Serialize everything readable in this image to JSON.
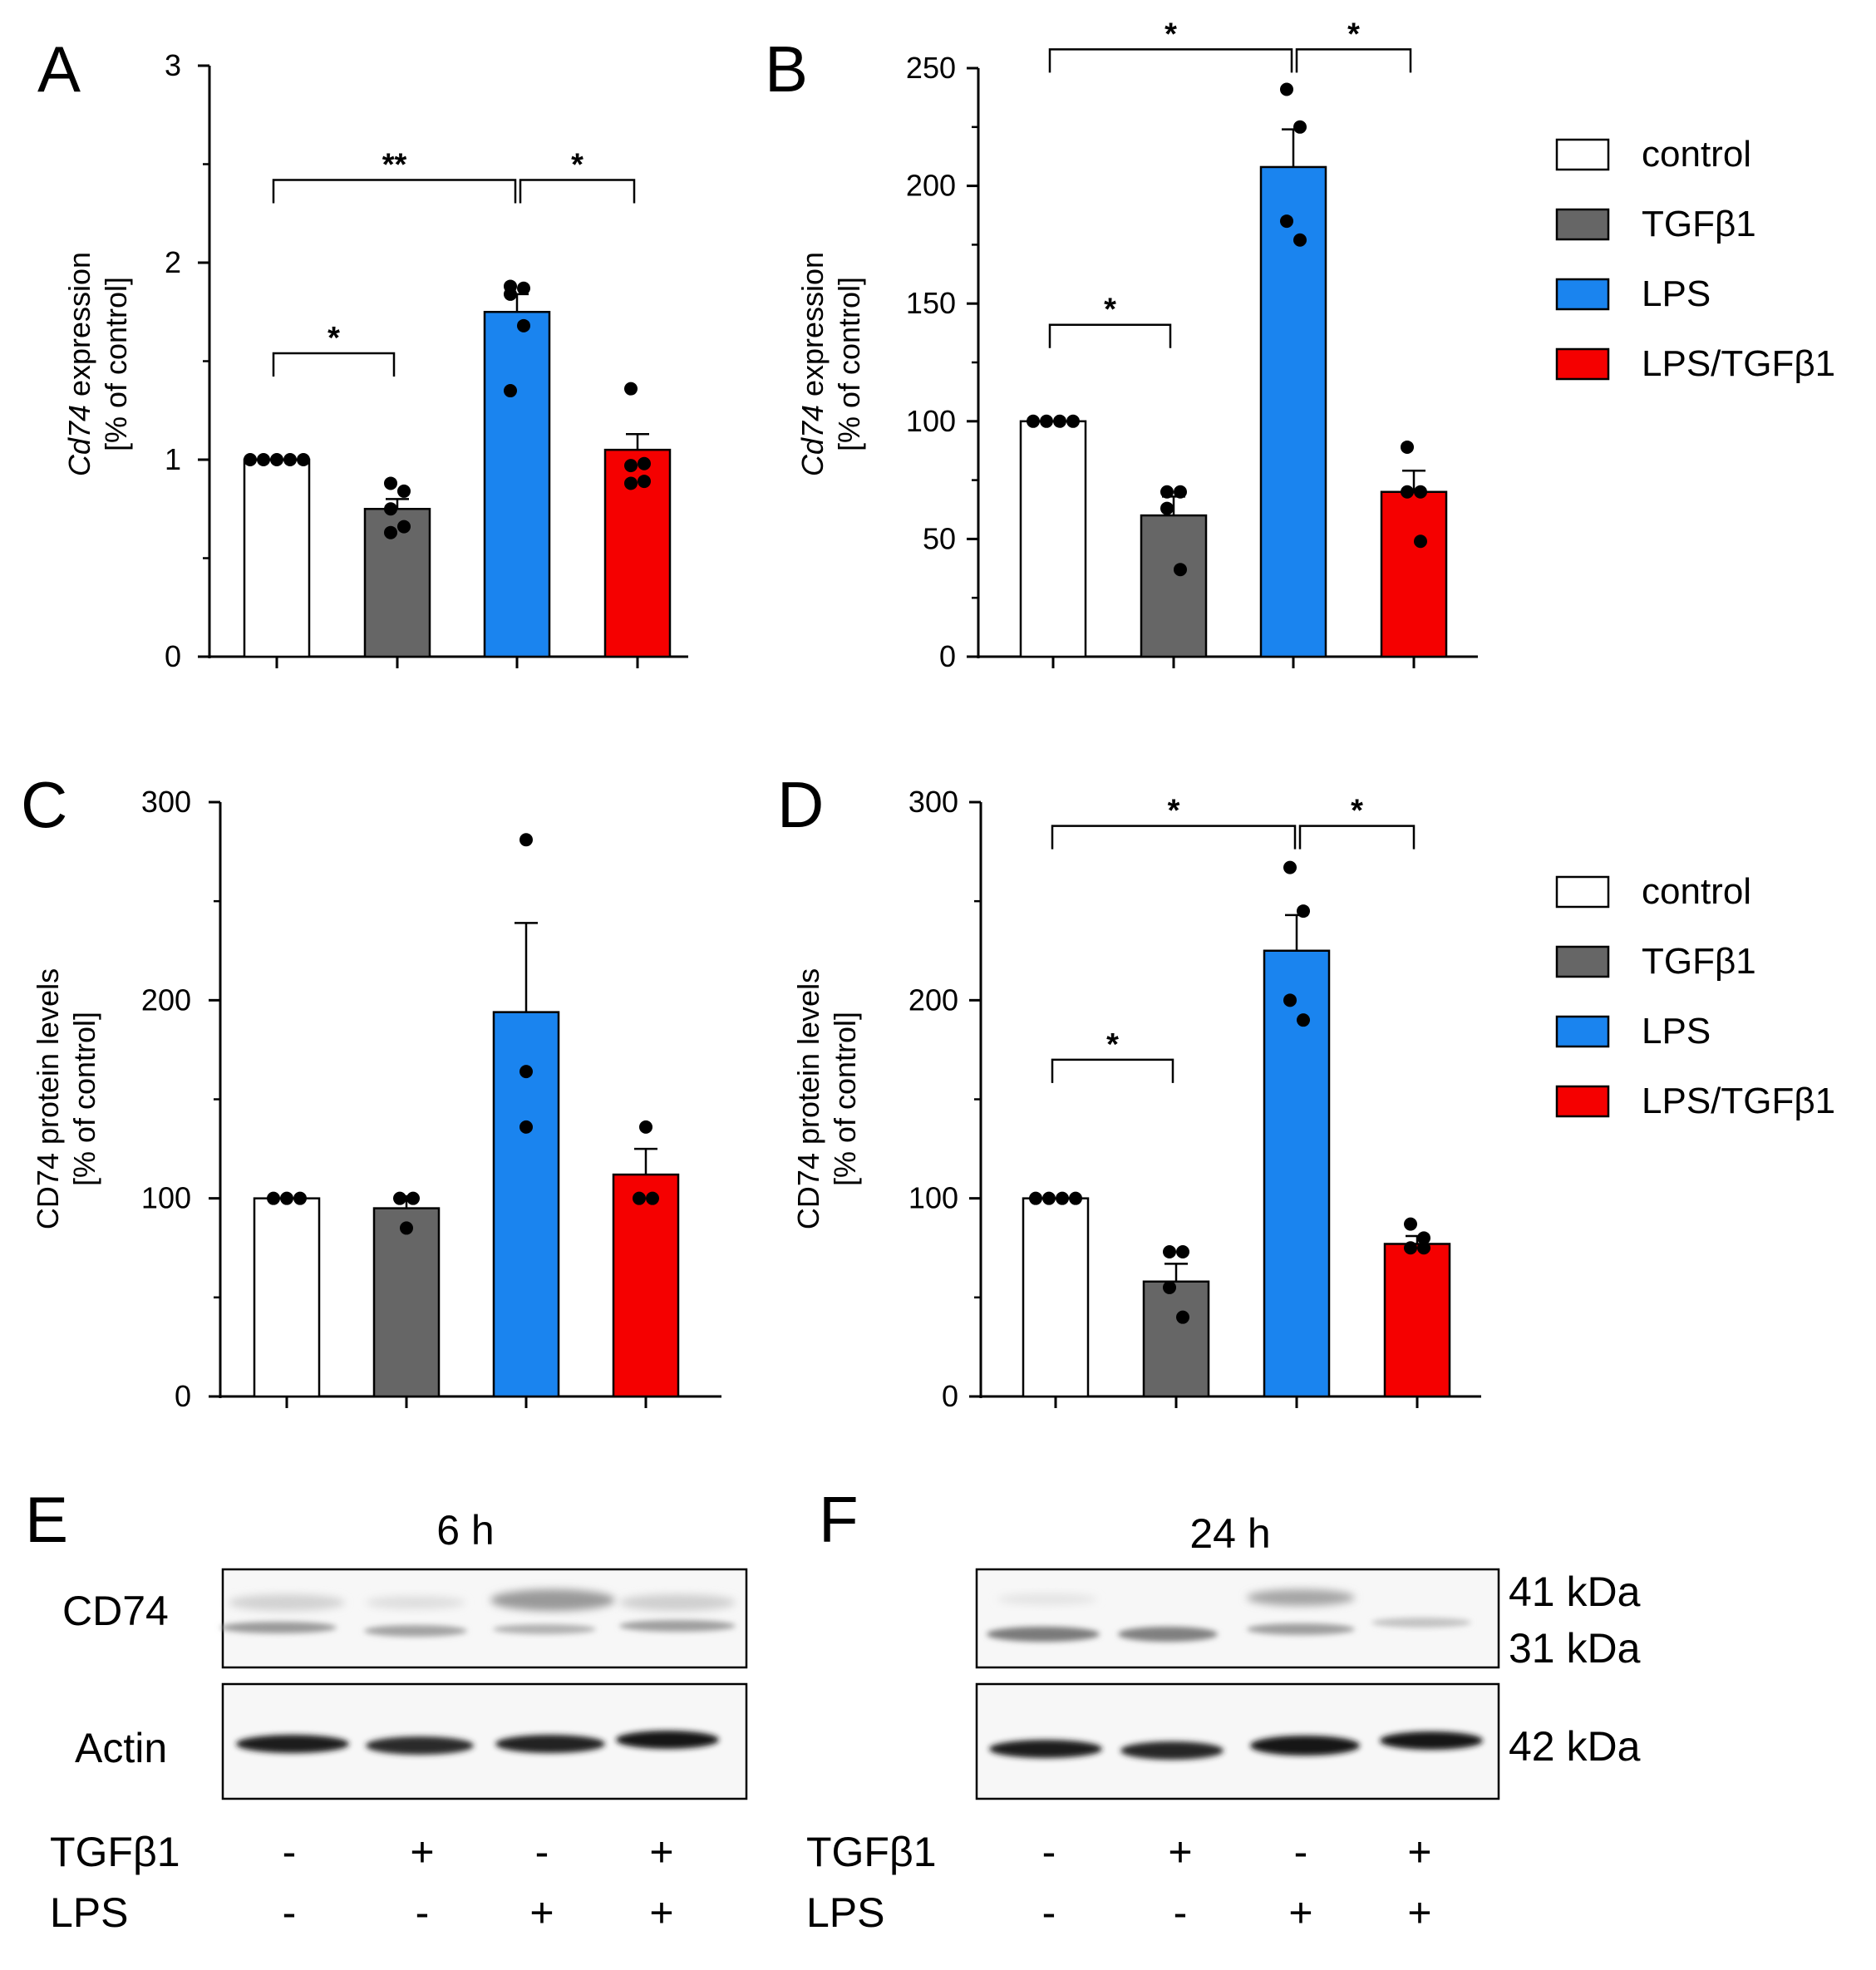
{
  "legend": {
    "entries": [
      {
        "label": "control",
        "color": "#ffffff"
      },
      {
        "label": "TGFβ1",
        "color": "#666666"
      },
      {
        "label": "LPS",
        "color": "#1a84ef"
      },
      {
        "label": "LPS/TGFβ1",
        "color": "#f50000"
      }
    ]
  },
  "chart_data": [
    {
      "panel": "A",
      "type": "bar",
      "title": "",
      "ylabel_italic": "Cd74",
      "ylabel_rest": " expression",
      "ylabel_line2": "[% of control]",
      "categories": [
        "control",
        "TGFβ1",
        "LPS",
        "LPS/TGFβ1"
      ],
      "colors": [
        "#ffffff",
        "#666666",
        "#1a84ef",
        "#f50000"
      ],
      "values": [
        1.0,
        0.75,
        1.75,
        1.05
      ],
      "errors": [
        0,
        0.05,
        0.09,
        0.08
      ],
      "points": [
        [
          1,
          1,
          1,
          1,
          1
        ],
        [
          0.88,
          0.84,
          0.75,
          0.66,
          0.63
        ],
        [
          1.88,
          1.87,
          1.84,
          1.68,
          1.35
        ],
        [
          1.36,
          0.98,
          0.97,
          0.89,
          0.88
        ]
      ],
      "ylim": [
        0,
        3
      ],
      "yticks": [
        0,
        1,
        2,
        3
      ],
      "ytick_labels": [
        "0",
        "1",
        "2",
        "3"
      ],
      "brackets": [
        {
          "from": 0,
          "to": 1,
          "y": 1.54,
          "label": "*"
        },
        {
          "from": 0,
          "to": 2,
          "y": 2.42,
          "label": "**"
        },
        {
          "from": 2,
          "to": 3,
          "y": 2.42,
          "label": "*"
        }
      ]
    },
    {
      "panel": "B",
      "type": "bar",
      "title": "",
      "ylabel_italic": "Cd74",
      "ylabel_rest": " expression",
      "ylabel_line2": "[% of control]",
      "categories": [
        "control",
        "TGFβ1",
        "LPS",
        "LPS/TGFβ1"
      ],
      "colors": [
        "#ffffff",
        "#666666",
        "#1a84ef",
        "#f50000"
      ],
      "values": [
        100,
        60,
        208,
        70
      ],
      "errors": [
        0,
        8,
        16,
        9
      ],
      "points": [
        [
          100,
          100,
          100,
          100
        ],
        [
          70,
          70,
          63,
          37
        ],
        [
          241,
          225,
          185,
          177
        ],
        [
          89,
          70,
          70,
          49
        ]
      ],
      "ylim": [
        0,
        250
      ],
      "yticks": [
        0,
        50,
        100,
        150,
        200,
        250
      ],
      "ytick_labels": [
        "0",
        "50",
        "100",
        "150",
        "200",
        "250"
      ],
      "brackets": [
        {
          "from": 0,
          "to": 1,
          "y": 141,
          "label": "*"
        },
        {
          "from": 0,
          "to": 2,
          "y": 258,
          "label": "*"
        },
        {
          "from": 2,
          "to": 3,
          "y": 258,
          "label": "*"
        }
      ]
    },
    {
      "panel": "C",
      "type": "bar",
      "title": "",
      "ylabel_italic": "",
      "ylabel_rest": "CD74 protein levels",
      "ylabel_line2": "[% of control]",
      "categories": [
        "control",
        "TGFβ1",
        "LPS",
        "LPS/TGFβ1"
      ],
      "colors": [
        "#ffffff",
        "#666666",
        "#1a84ef",
        "#f50000"
      ],
      "values": [
        100,
        95,
        194,
        112
      ],
      "errors": [
        0,
        6,
        45,
        13
      ],
      "points": [
        [
          100,
          100,
          100
        ],
        [
          100,
          100,
          85
        ],
        [
          281,
          164,
          136
        ],
        [
          136,
          100,
          100
        ]
      ],
      "ylim": [
        0,
        300
      ],
      "yticks": [
        0,
        100,
        200,
        300
      ],
      "ytick_labels": [
        "0",
        "100",
        "200",
        "300"
      ],
      "brackets": []
    },
    {
      "panel": "D",
      "type": "bar",
      "title": "",
      "ylabel_italic": "",
      "ylabel_rest": "CD74 protein levels",
      "ylabel_line2": "[% of control]",
      "categories": [
        "control",
        "TGFβ1",
        "LPS",
        "LPS/TGFβ1"
      ],
      "colors": [
        "#ffffff",
        "#666666",
        "#1a84ef",
        "#f50000"
      ],
      "values": [
        100,
        58,
        225,
        77
      ],
      "errors": [
        0,
        9,
        18,
        4
      ],
      "points": [
        [
          100,
          100,
          100,
          100
        ],
        [
          73,
          73,
          55,
          40
        ],
        [
          267,
          245,
          200,
          190
        ],
        [
          87,
          80,
          75,
          75
        ]
      ],
      "ylim": [
        0,
        300
      ],
      "yticks": [
        0,
        100,
        200,
        300
      ],
      "ytick_labels": [
        "0",
        "100",
        "200",
        "300"
      ],
      "brackets": [
        {
          "from": 0,
          "to": 1,
          "y": 170,
          "label": "*"
        },
        {
          "from": 0,
          "to": 2,
          "y": 288,
          "label": "*"
        },
        {
          "from": 2,
          "to": 3,
          "y": 288,
          "label": "*"
        }
      ]
    }
  ],
  "blots": [
    {
      "panel": "E",
      "time": "6 h",
      "row_labels": [
        "CD74",
        "Actin"
      ],
      "tgf_label": "TGFβ1",
      "lps_label": "LPS",
      "tgf_signs": [
        "-",
        "+",
        "-",
        "+"
      ],
      "lps_signs": [
        "-",
        "-",
        "+",
        "+"
      ],
      "kda_labels": []
    },
    {
      "panel": "F",
      "time": "24 h",
      "row_labels": [],
      "tgf_label": "TGFβ1",
      "lps_label": "LPS",
      "tgf_signs": [
        "-",
        "+",
        "-",
        "+"
      ],
      "lps_signs": [
        "-",
        "-",
        "+",
        "+"
      ],
      "kda_labels": [
        "41 kDa",
        "31 kDa",
        "42 kDa"
      ]
    }
  ]
}
